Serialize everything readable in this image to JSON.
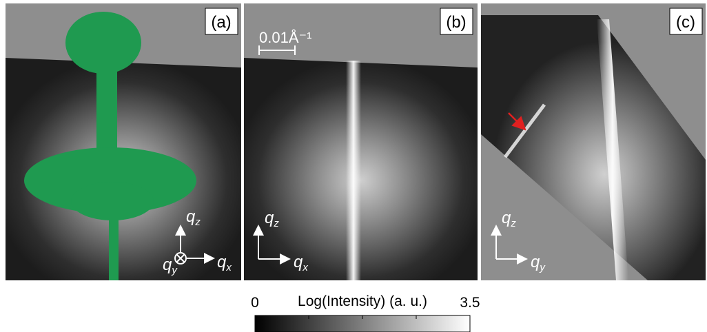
{
  "panels": [
    {
      "label": "(a)",
      "axes": [
        {
          "base": "q",
          "sub": "z"
        },
        {
          "base": "q",
          "sub": "x"
        },
        {
          "base": "q",
          "sub": "y"
        }
      ]
    },
    {
      "label": "(b)",
      "scale_bar": "0.01Å⁻¹",
      "axes": [
        {
          "base": "q",
          "sub": "z"
        },
        {
          "base": "q",
          "sub": "x"
        }
      ]
    },
    {
      "label": "(c)",
      "axes": [
        {
          "base": "q",
          "sub": "z"
        },
        {
          "base": "q",
          "sub": "y"
        }
      ]
    }
  ],
  "colorbar": {
    "title": "Log(Intensity) (a. u.)",
    "range": [
      0,
      3.5
    ],
    "ticks": [
      0,
      3.5
    ],
    "minor_ticks": [
      0.875,
      1.75,
      2.625
    ]
  }
}
